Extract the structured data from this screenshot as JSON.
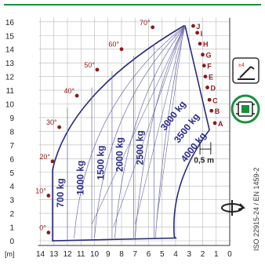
{
  "chart_data": {
    "type": "load-chart",
    "x_axis": {
      "unit_label": "[m]",
      "ticks": [
        "14",
        "13",
        "12",
        "11",
        "10",
        "9",
        "8",
        "7",
        "6",
        "5",
        "4",
        "3",
        "2",
        "1",
        "0"
      ]
    },
    "y_axis": {
      "ticks": [
        "0",
        "1",
        "2",
        "3",
        "4",
        "5",
        "6",
        "7",
        "8",
        "9",
        "10",
        "11",
        "12",
        "13",
        "14",
        "15",
        "16"
      ]
    },
    "angles": [
      {
        "label": "0°",
        "deg": 0
      },
      {
        "label": "10°",
        "deg": 10
      },
      {
        "label": "20°",
        "deg": 20
      },
      {
        "label": "30°",
        "deg": 30
      },
      {
        "label": "40°",
        "deg": 40
      },
      {
        "label": "50°",
        "deg": 50
      },
      {
        "label": "60°",
        "deg": 60
      },
      {
        "label": "70°",
        "deg": 70
      }
    ],
    "extension_points": [
      "A",
      "B",
      "C",
      "D",
      "E",
      "F",
      "G",
      "H",
      "I",
      "J"
    ],
    "load_zones": [
      "700 kg",
      "1000 kg",
      "1500 kg",
      "2000 kg",
      "2500 kg",
      "3000 kg",
      "3500 kg",
      "4000 kg"
    ],
    "dimension_label": "0,5 m",
    "standard_text": "ISO 22915-24 / EN 1459-2",
    "colors": {
      "frame": "#1a8f3c",
      "envelope": "#2a2a7a",
      "accent": "#8b1a1a",
      "zone_text": "#2b2b8a",
      "grid": "#b8b8b8"
    }
  }
}
